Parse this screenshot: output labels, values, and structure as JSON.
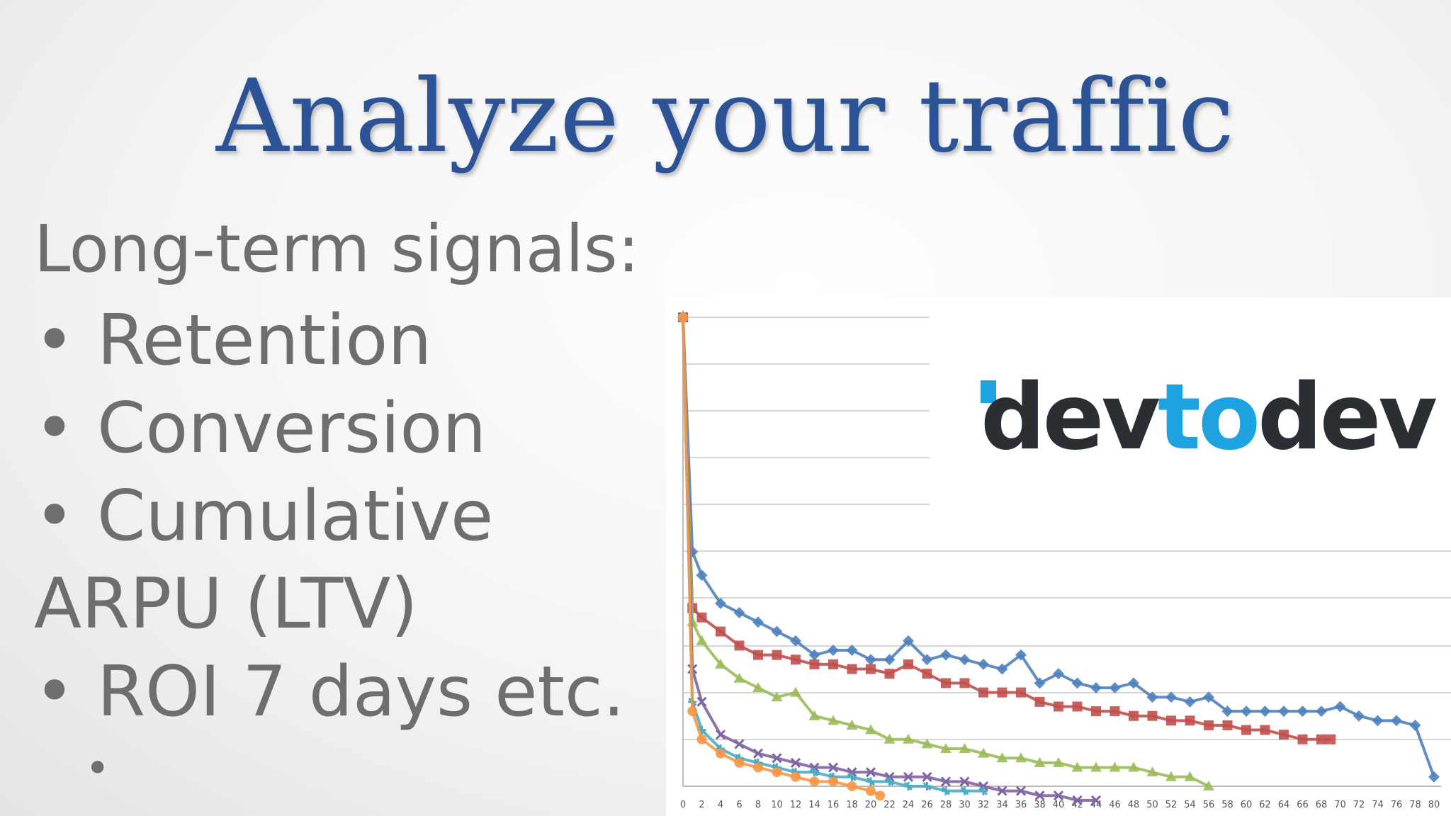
{
  "title": "Analyze your traffic",
  "body": {
    "heading": "Long-term signals:",
    "bullets": [
      "• Retention",
      "• Conversion",
      "• Cumulative",
      "ARPU (LTV)",
      "• ROI 7 days etc.",
      "•"
    ]
  },
  "logo": {
    "part1": "dev",
    "part2": "to",
    "part3": "dev",
    "colors": {
      "dark": "#2b2f33",
      "accent": "#1fa3e0"
    }
  },
  "chart_data": {
    "type": "line",
    "title": "",
    "xlabel": "",
    "ylabel": "",
    "grid": "horizontal",
    "xlim": [
      0,
      80
    ],
    "ylim": [
      0,
      100
    ],
    "x_ticks": [
      "0",
      "2",
      "4",
      "6",
      "8",
      "10",
      "12",
      "14",
      "16",
      "18",
      "20",
      "22",
      "24",
      "26",
      "28",
      "30",
      "32",
      "34",
      "36",
      "38",
      "40",
      "42",
      "44",
      "46",
      "48",
      "50",
      "52",
      "54",
      "56",
      "58",
      "60",
      "62",
      "64",
      "66",
      "68",
      "70",
      "72",
      "74",
      "76",
      "78",
      "80"
    ],
    "series": [
      {
        "color": "#4f81bd",
        "marker": "diamond",
        "points": [
          [
            0,
            100
          ],
          [
            1,
            50
          ],
          [
            2,
            45
          ],
          [
            4,
            39
          ],
          [
            6,
            37
          ],
          [
            8,
            35
          ],
          [
            10,
            33
          ],
          [
            12,
            31
          ],
          [
            14,
            28
          ],
          [
            16,
            29
          ],
          [
            18,
            29
          ],
          [
            20,
            27
          ],
          [
            22,
            27
          ],
          [
            24,
            31
          ],
          [
            26,
            27
          ],
          [
            28,
            28
          ],
          [
            30,
            27
          ],
          [
            32,
            26
          ],
          [
            34,
            25
          ],
          [
            36,
            28
          ],
          [
            38,
            22
          ],
          [
            40,
            24
          ],
          [
            42,
            22
          ],
          [
            44,
            21
          ],
          [
            46,
            21
          ],
          [
            48,
            22
          ],
          [
            50,
            19
          ],
          [
            52,
            19
          ],
          [
            54,
            18
          ],
          [
            56,
            19
          ],
          [
            58,
            16
          ],
          [
            60,
            16
          ],
          [
            62,
            16
          ],
          [
            64,
            16
          ],
          [
            66,
            16
          ],
          [
            68,
            16
          ],
          [
            70,
            17
          ],
          [
            72,
            15
          ],
          [
            74,
            14
          ],
          [
            76,
            14
          ],
          [
            78,
            13
          ],
          [
            80,
            2
          ]
        ]
      },
      {
        "color": "#c0504d",
        "marker": "square",
        "points": [
          [
            0,
            100
          ],
          [
            1,
            38
          ],
          [
            2,
            36
          ],
          [
            4,
            33
          ],
          [
            6,
            30
          ],
          [
            8,
            28
          ],
          [
            10,
            28
          ],
          [
            12,
            27
          ],
          [
            14,
            26
          ],
          [
            16,
            26
          ],
          [
            18,
            25
          ],
          [
            20,
            25
          ],
          [
            22,
            24
          ],
          [
            24,
            26
          ],
          [
            26,
            24
          ],
          [
            28,
            22
          ],
          [
            30,
            22
          ],
          [
            32,
            20
          ],
          [
            34,
            20
          ],
          [
            36,
            20
          ],
          [
            38,
            18
          ],
          [
            40,
            17
          ],
          [
            42,
            17
          ],
          [
            44,
            16
          ],
          [
            46,
            16
          ],
          [
            48,
            15
          ],
          [
            50,
            15
          ],
          [
            52,
            14
          ],
          [
            54,
            14
          ],
          [
            56,
            13
          ],
          [
            58,
            13
          ],
          [
            60,
            12
          ],
          [
            62,
            12
          ],
          [
            64,
            11
          ],
          [
            66,
            10
          ],
          [
            68,
            10
          ],
          [
            69,
            10
          ]
        ]
      },
      {
        "color": "#9bbb59",
        "marker": "triangle",
        "points": [
          [
            0,
            100
          ],
          [
            1,
            35
          ],
          [
            2,
            31
          ],
          [
            4,
            26
          ],
          [
            6,
            23
          ],
          [
            8,
            21
          ],
          [
            10,
            19
          ],
          [
            12,
            20
          ],
          [
            14,
            15
          ],
          [
            16,
            14
          ],
          [
            18,
            13
          ],
          [
            20,
            12
          ],
          [
            22,
            10
          ],
          [
            24,
            10
          ],
          [
            26,
            9
          ],
          [
            28,
            8
          ],
          [
            30,
            8
          ],
          [
            32,
            7
          ],
          [
            34,
            6
          ],
          [
            36,
            6
          ],
          [
            38,
            5
          ],
          [
            40,
            5
          ],
          [
            42,
            4
          ],
          [
            44,
            4
          ],
          [
            46,
            4
          ],
          [
            48,
            4
          ],
          [
            50,
            3
          ],
          [
            52,
            2
          ],
          [
            54,
            2
          ],
          [
            56,
            0
          ]
        ]
      },
      {
        "color": "#8064a2",
        "marker": "x",
        "points": [
          [
            0,
            100
          ],
          [
            1,
            25
          ],
          [
            2,
            18
          ],
          [
            4,
            11
          ],
          [
            6,
            9
          ],
          [
            8,
            7
          ],
          [
            10,
            6
          ],
          [
            12,
            5
          ],
          [
            14,
            4
          ],
          [
            16,
            4
          ],
          [
            18,
            3
          ],
          [
            20,
            3
          ],
          [
            22,
            2
          ],
          [
            24,
            2
          ],
          [
            26,
            2
          ],
          [
            28,
            1
          ],
          [
            30,
            1
          ],
          [
            32,
            0
          ],
          [
            34,
            -1
          ],
          [
            36,
            -1
          ],
          [
            38,
            -2
          ],
          [
            40,
            -2
          ],
          [
            42,
            -3
          ],
          [
            44,
            -3
          ]
        ]
      },
      {
        "color": "#4bacc6",
        "marker": "star",
        "points": [
          [
            0,
            100
          ],
          [
            1,
            18
          ],
          [
            2,
            12
          ],
          [
            4,
            8
          ],
          [
            6,
            6
          ],
          [
            8,
            5
          ],
          [
            10,
            4
          ],
          [
            12,
            3
          ],
          [
            14,
            3
          ],
          [
            16,
            2
          ],
          [
            18,
            2
          ],
          [
            20,
            1
          ],
          [
            22,
            1
          ],
          [
            24,
            0
          ],
          [
            26,
            0
          ],
          [
            28,
            -1
          ],
          [
            30,
            -1
          ],
          [
            32,
            -1
          ]
        ]
      },
      {
        "color": "#f79646",
        "marker": "circle",
        "points": [
          [
            0,
            100
          ],
          [
            1,
            16
          ],
          [
            2,
            10
          ],
          [
            4,
            7
          ],
          [
            6,
            5
          ],
          [
            8,
            4
          ],
          [
            10,
            3
          ],
          [
            12,
            2
          ],
          [
            14,
            1
          ],
          [
            16,
            1
          ],
          [
            18,
            0
          ],
          [
            20,
            -1
          ],
          [
            21,
            -2
          ]
        ]
      }
    ]
  }
}
